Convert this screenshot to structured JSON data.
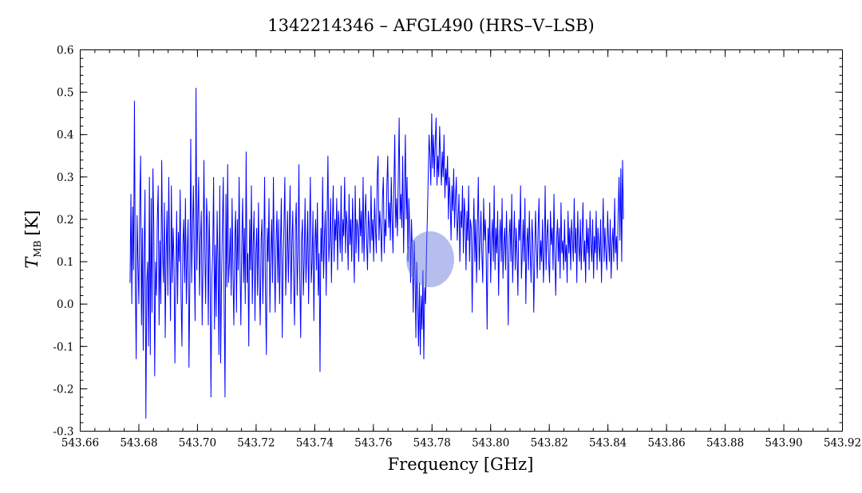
{
  "chart_data": {
    "type": "line",
    "title": "1342214346 – AFGL490 (HRS–V–LSB)",
    "xlabel": "Frequency [GHz]",
    "ylabel_main": "T",
    "ylabel_sub": "MB",
    "ylabel_unit": "[K]",
    "xlim": [
      543.66,
      543.92
    ],
    "ylim": [
      -0.3,
      0.6
    ],
    "x_ticks": [
      "543.66",
      "543.68",
      "543.70",
      "543.72",
      "543.74",
      "543.76",
      "543.78",
      "543.80",
      "543.82",
      "543.84",
      "543.86",
      "543.88",
      "543.90",
      "543.92"
    ],
    "y_ticks": [
      "-0.3",
      "-0.2",
      "-0.1",
      "0.0",
      "0.1",
      "0.2",
      "0.3",
      "0.4",
      "0.5",
      "0.6"
    ],
    "x_minor_step": 0.005,
    "y_minor_step": 0.02,
    "grid": false,
    "x_start": 543.677,
    "x_step": 0.0003,
    "values": [
      0.05,
      0.26,
      0.0,
      0.23,
      0.08,
      0.48,
      0.05,
      -0.13,
      0.21,
      0.1,
      0.0,
      0.23,
      0.35,
      -0.05,
      0.18,
      -0.11,
      0.12,
      0.27,
      -0.27,
      0.05,
      0.1,
      -0.1,
      0.3,
      -0.12,
      0.25,
      -0.02,
      0.32,
      0.18,
      -0.17,
      0.1,
      0.02,
      0.2,
      0.28,
      -0.05,
      0.15,
      0.0,
      0.34,
      0.12,
      0.05,
      0.24,
      -0.08,
      0.12,
      0.22,
      0.02,
      0.3,
      0.12,
      -0.04,
      0.28,
      0.05,
      0.18,
      0.1,
      -0.14,
      0.06,
      0.22,
      0.0,
      0.17,
      0.1,
      0.27,
      0.02,
      -0.1,
      0.14,
      0.2,
      0.05,
      0.25,
      0.0,
      0.12,
      0.2,
      -0.15,
      0.05,
      0.39,
      0.05,
      0.18,
      0.28,
      0.1,
      -0.04,
      0.51,
      0.08,
      0.2,
      0.3,
      0.02,
      0.15,
      0.22,
      -0.05,
      0.1,
      0.34,
      0.12,
      0.0,
      0.25,
      0.18,
      -0.05,
      0.22,
      0.08,
      -0.22,
      0.06,
      0.12,
      0.3,
      -0.06,
      0.14,
      -0.03,
      0.22,
      0.1,
      -0.12,
      0.28,
      -0.14,
      0.05,
      0.18,
      0.3,
      0.0,
      -0.22,
      0.26,
      0.04,
      0.33,
      0.05,
      0.1,
      0.18,
      0.02,
      0.25,
      0.08,
      -0.05,
      0.15,
      0.22,
      -0.02,
      0.2,
      0.08,
      0.3,
      0.1,
      -0.05,
      0.14,
      0.25,
      0.05,
      0.18,
      0.0,
      0.36,
      0.05,
      0.12,
      -0.1,
      0.2,
      0.08,
      0.28,
      0.0,
      0.14,
      0.22,
      -0.04,
      0.12,
      0.18,
      0.02,
      0.24,
      0.06,
      -0.05,
      0.15,
      0.2,
      0.0,
      0.12,
      0.3,
      0.02,
      -0.12,
      0.18,
      0.1,
      0.25,
      -0.02,
      0.12,
      0.2,
      0.05,
      0.3,
      0.1,
      -0.02,
      0.15,
      0.22,
      0.05,
      0.2,
      0.0,
      0.14,
      0.25,
      -0.08,
      0.1,
      0.18,
      0.3,
      0.02,
      0.12,
      0.22,
      0.05,
      0.16,
      0.28,
      0.0,
      0.14,
      0.22,
      0.06,
      -0.05,
      0.18,
      0.24,
      0.02,
      0.12,
      0.33,
      0.06,
      -0.08,
      0.15,
      0.2,
      0.02,
      0.1,
      0.25,
      0.05,
      0.12,
      0.22,
      0.0,
      0.16,
      0.3,
      0.05,
      0.1,
      0.22,
      -0.04,
      0.14,
      0.2,
      0.08,
      0.24,
      0.02,
      0.12,
      -0.16,
      0.18,
      0.1,
      0.3,
      0.06,
      0.15,
      0.22,
      0.02,
      0.2,
      0.35,
      0.1,
      0.15,
      0.25,
      0.05,
      0.18,
      0.28,
      0.1,
      0.2,
      0.15,
      0.25,
      0.08,
      0.22,
      0.18,
      0.12,
      0.28,
      0.1,
      0.2,
      0.16,
      0.3,
      0.12,
      0.22,
      0.18,
      0.08,
      0.26,
      0.14,
      0.2,
      0.1,
      0.25,
      0.15,
      0.05,
      0.28,
      0.12,
      0.2,
      0.18,
      0.1,
      0.25,
      0.16,
      0.22,
      0.12,
      0.3,
      0.1,
      0.2,
      0.26,
      0.15,
      0.08,
      0.22,
      0.18,
      0.12,
      0.28,
      0.15,
      0.2,
      0.1,
      0.25,
      0.18,
      0.12,
      0.3,
      0.35,
      0.15,
      0.22,
      0.18,
      0.1,
      0.25,
      0.3,
      0.12,
      0.2,
      0.16,
      0.28,
      0.35,
      0.18,
      0.24,
      0.15,
      0.3,
      0.2,
      0.12,
      0.28,
      0.4,
      0.18,
      0.25,
      0.16,
      0.3,
      0.44,
      0.2,
      0.26,
      0.18,
      0.35,
      0.12,
      0.25,
      0.4,
      0.2,
      0.3,
      0.1,
      0.25,
      0.18,
      0.05,
      0.2,
      0.12,
      -0.02,
      0.15,
      0.08,
      -0.08,
      0.1,
      0.0,
      -0.1,
      0.05,
      -0.12,
      0.02,
      -0.06,
      0.08,
      -0.13,
      0.04,
      0.0,
      0.12,
      0.2,
      0.3,
      0.4,
      0.35,
      0.28,
      0.45,
      0.32,
      0.4,
      0.3,
      0.38,
      0.44,
      0.28,
      0.35,
      0.3,
      0.42,
      0.34,
      0.28,
      0.36,
      0.3,
      0.4,
      0.25,
      0.32,
      0.28,
      0.35,
      0.2,
      0.3,
      0.25,
      0.15,
      0.28,
      0.22,
      0.32,
      0.18,
      0.25,
      0.3,
      0.15,
      0.2,
      0.26,
      0.1,
      0.22,
      0.18,
      0.28,
      0.12,
      0.25,
      0.2,
      0.08,
      0.22,
      0.15,
      0.28,
      0.1,
      0.2,
      0.18,
      -0.02,
      0.15,
      0.25,
      0.1,
      0.2,
      0.05,
      0.18,
      0.3,
      0.08,
      0.15,
      0.22,
      0.12,
      0.05,
      0.25,
      0.15,
      0.2,
      0.1,
      -0.06,
      0.18,
      0.12,
      0.24,
      0.05,
      0.15,
      0.2,
      0.1,
      0.28,
      0.08,
      0.18,
      0.12,
      0.22,
      0.02,
      0.15,
      0.2,
      0.1,
      0.25,
      0.06,
      0.14,
      0.18,
      0.08,
      0.22,
      0.12,
      -0.05,
      0.16,
      0.2,
      0.1,
      0.26,
      0.05,
      0.14,
      0.22,
      0.08,
      0.18,
      0.12,
      0.02,
      0.2,
      0.15,
      0.28,
      0.06,
      0.12,
      0.2,
      0.1,
      0.25,
      0.0,
      0.14,
      0.18,
      0.08,
      0.22,
      0.12,
      0.05,
      0.2,
      0.15,
      -0.02,
      0.1,
      0.22,
      0.14,
      0.06,
      0.18,
      0.25,
      0.08,
      0.15,
      0.1,
      0.2,
      0.05,
      0.12,
      0.28,
      0.08,
      0.16,
      0.2,
      0.1,
      0.05,
      0.22,
      0.14,
      0.18,
      0.08,
      0.26,
      0.12,
      0.02,
      0.15,
      0.2,
      0.1,
      0.18,
      0.06,
      0.24,
      0.12,
      0.15,
      0.08,
      0.2,
      0.1,
      0.14,
      0.05,
      0.22,
      0.12,
      0.18,
      0.08,
      0.2,
      0.15,
      0.1,
      0.25,
      0.12,
      0.18,
      0.05,
      0.22,
      0.14,
      0.1,
      0.2,
      0.08,
      0.16,
      0.24,
      0.1,
      0.15,
      0.05,
      0.2,
      0.12,
      0.18,
      0.08,
      0.22,
      0.14,
      0.1,
      0.2,
      0.06,
      0.16,
      0.12,
      0.22,
      0.08,
      0.18,
      0.14,
      0.1,
      0.2,
      0.05,
      0.15,
      0.25,
      0.1,
      0.18,
      0.12,
      0.08,
      0.22,
      0.15,
      0.1,
      0.2,
      0.06,
      0.14,
      0.18,
      0.1,
      0.25,
      0.12,
      0.16,
      0.08,
      0.22,
      0.3,
      0.15,
      0.32,
      0.1,
      0.34,
      0.2
    ]
  }
}
